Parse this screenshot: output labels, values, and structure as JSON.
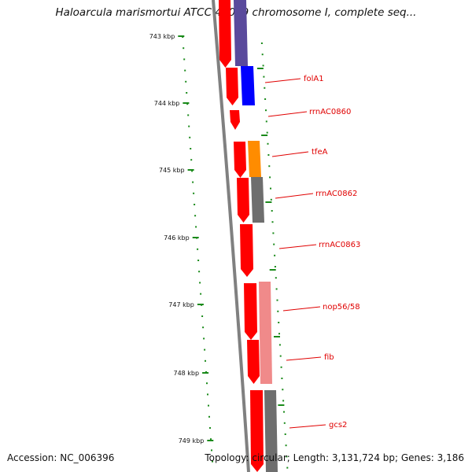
{
  "title": "Haloarcula marismortui ATCC 43049 chromosome I, complete seq...",
  "footer": {
    "accession": "Accession: NC_006396",
    "summary": "Topology: circular; Length: 3,131,724 bp; Genes: 3,186"
  },
  "ruler": {
    "labels": [
      "743 kbp",
      "744 kbp",
      "745 kbp",
      "746 kbp",
      "747 kbp",
      "748 kbp",
      "749 kbp"
    ]
  },
  "genes": [
    "folA1",
    "rrnAC0860",
    "tfeA",
    "rrnAC0862",
    "rrnAC0863",
    "nop56/58",
    "fib",
    "gcs2"
  ],
  "colors": {
    "gene_red": "#ff0000",
    "gene_pink": "#f08a8a",
    "purple": "#5a4a9c",
    "blue": "#0000ff",
    "orange": "#ff8c00",
    "grey": "#6e6e6e",
    "tick_green": "#1a8a1a",
    "label_red": "#e00000",
    "backbone": "#808080"
  }
}
